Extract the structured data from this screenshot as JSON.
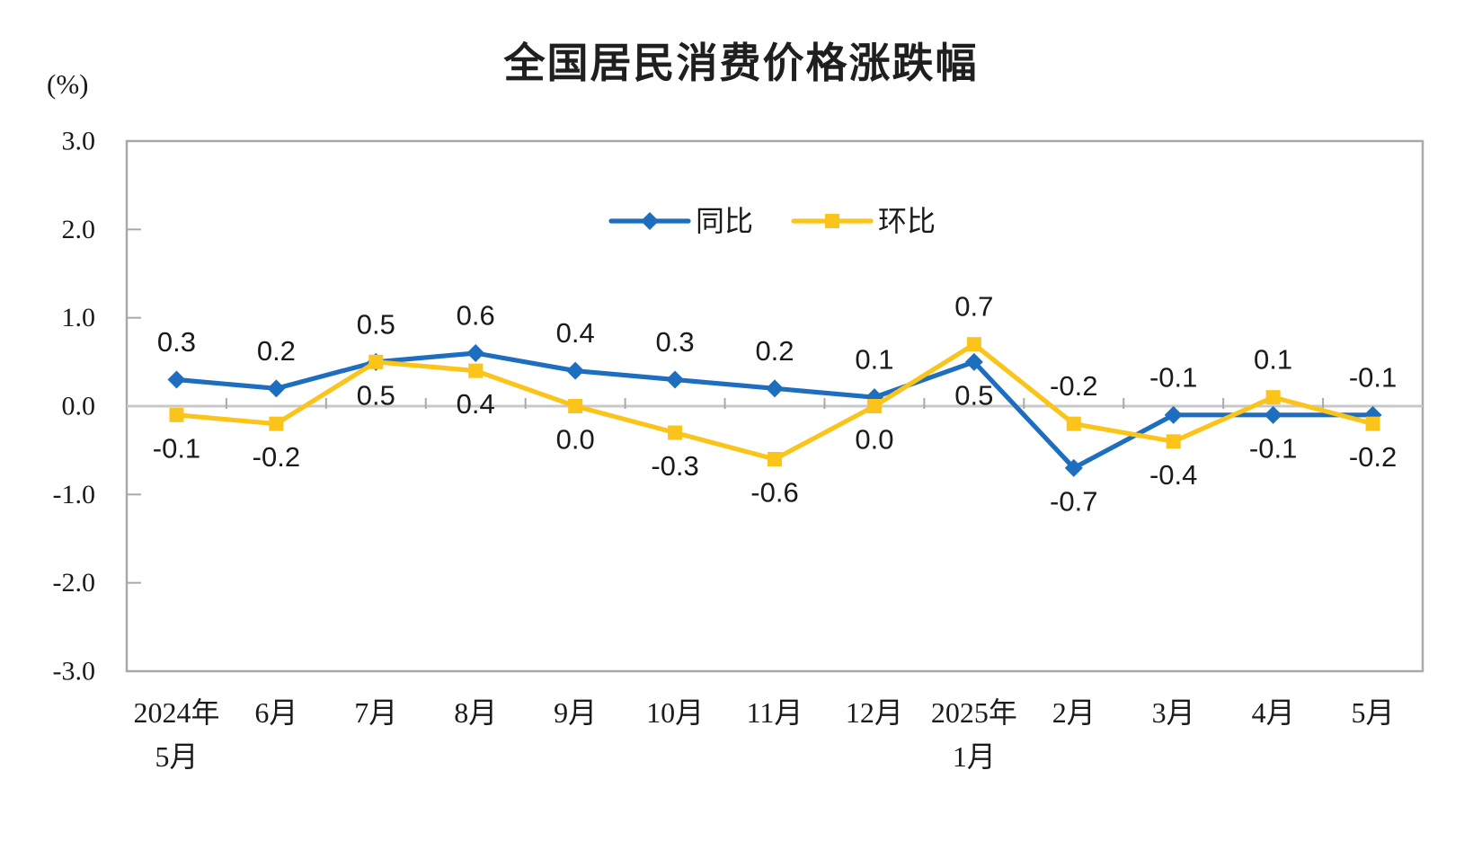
{
  "chart_data": {
    "type": "line",
    "title": "全国居民消费价格涨跌幅",
    "ylabel": "(%)",
    "xlabel": "",
    "ylim": [
      -3.0,
      3.0
    ],
    "yticks": [
      3.0,
      2.0,
      1.0,
      0.0,
      -1.0,
      -2.0,
      -3.0
    ],
    "grid": false,
    "zero_line": true,
    "legend_position": "top-center-inside",
    "categories": [
      [
        "2024年",
        "5月"
      ],
      [
        "6月"
      ],
      [
        "7月"
      ],
      [
        "8月"
      ],
      [
        "9月"
      ],
      [
        "10月"
      ],
      [
        "11月"
      ],
      [
        "12月"
      ],
      [
        "2025年",
        "1月"
      ],
      [
        "2月"
      ],
      [
        "3月"
      ],
      [
        "4月"
      ],
      [
        "5月"
      ]
    ],
    "series": [
      {
        "key": "yoy",
        "name": "同比",
        "color": "#1E6EC0",
        "marker": "diamond",
        "values": [
          0.3,
          0.2,
          0.5,
          0.6,
          0.4,
          0.3,
          0.2,
          0.1,
          0.5,
          -0.7,
          -0.1,
          -0.1,
          -0.1
        ],
        "label_side": [
          "above",
          "above",
          "above",
          "above",
          "above",
          "above",
          "above",
          "above",
          "below",
          "below",
          "above",
          "below",
          "above"
        ]
      },
      {
        "key": "mom",
        "name": "环比",
        "color": "#FBC41A",
        "marker": "square",
        "values": [
          -0.1,
          -0.2,
          0.5,
          0.4,
          0.0,
          -0.3,
          -0.6,
          0.0,
          0.7,
          -0.2,
          -0.4,
          0.1,
          -0.2
        ],
        "label_side": [
          "below",
          "below",
          "below",
          "below",
          "below",
          "below",
          "below",
          "below",
          "above",
          "above",
          "below",
          "above",
          "below"
        ]
      }
    ],
    "colors": {
      "axis_frame": "#A9A9A9",
      "zero_line": "#C9C9C9",
      "tick": "#A9A9A9",
      "label_text": "#1A1A1A"
    },
    "data_label_decimals": 1
  }
}
